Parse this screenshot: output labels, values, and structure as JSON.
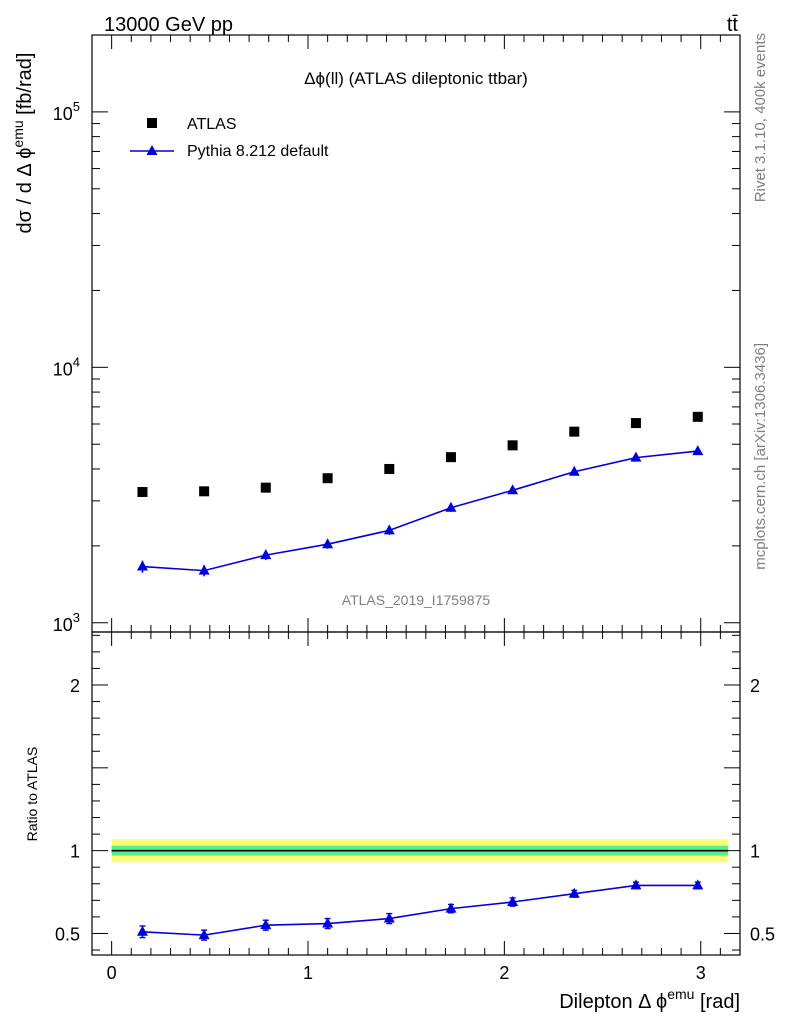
{
  "header": {
    "energy_label": "13000 GeV pp",
    "process_label": "tt̄"
  },
  "side": {
    "rivet_label": "Rivet 3.1.10,  400k events",
    "source_label": "mcplots.cern.ch [arXiv:1306.3436]"
  },
  "colors": {
    "data_marker": "#000000",
    "mc_line": "#0000dd",
    "band_inner": "#55ee88",
    "band_outer": "#ffff77"
  },
  "chart_data": [
    {
      "type": "scatter",
      "title": "Δϕ(ll) (ATLAS dileptonic ttbar)",
      "watermark": "ATLAS_2019_I1759875",
      "xlabel": "Dilepton Δ ϕ",
      "xlabel_sup": "emu",
      "xlabel_unit": " [rad]",
      "ylabel": "dσ / d Δ ϕ",
      "ylabel_sup": "emu",
      "ylabel_unit": " [fb/rad]",
      "yscale": "log",
      "xlim": [
        -0.1,
        3.2
      ],
      "ylim": [
        920,
        200000
      ],
      "xticks": [
        "0",
        "1",
        "2",
        "3"
      ],
      "yticks": [
        {
          "base": "10",
          "exp": "3",
          "value": 1000
        },
        {
          "base": "10",
          "exp": "4",
          "value": 10000
        },
        {
          "base": "10",
          "exp": "5",
          "value": 100000
        }
      ],
      "legend_position": "top-left",
      "x": [
        0.157,
        0.471,
        0.785,
        1.1,
        1.414,
        1.728,
        2.042,
        2.356,
        2.67,
        2.985
      ],
      "series": [
        {
          "name": "ATLAS",
          "marker": "square",
          "values": [
            3250,
            3270,
            3380,
            3680,
            4000,
            4450,
            4950,
            5600,
            6050,
            6400
          ]
        },
        {
          "name": "Pythia 8.212 default",
          "marker": "triangle",
          "values": [
            1660,
            1600,
            1840,
            2030,
            2300,
            2820,
            3300,
            3900,
            4430,
            4700
          ],
          "errors": [
            90,
            80,
            80,
            80,
            90,
            100,
            80,
            80,
            80,
            80
          ]
        }
      ]
    },
    {
      "type": "line",
      "ylabel": "Ratio to ATLAS",
      "xlim": [
        -0.1,
        3.2
      ],
      "ylim": [
        0.37,
        2.32
      ],
      "yticks": [
        "0.5",
        "1",
        "2"
      ],
      "x": [
        0.157,
        0.471,
        0.785,
        1.1,
        1.414,
        1.728,
        2.042,
        2.356,
        2.67,
        2.985
      ],
      "reference": 1.0,
      "band_inner": [
        0.97,
        1.03
      ],
      "band_outer": [
        0.93,
        1.07
      ],
      "series": [
        {
          "name": "Pythia 8.212 default",
          "values": [
            0.51,
            0.49,
            0.55,
            0.56,
            0.59,
            0.65,
            0.69,
            0.74,
            0.79,
            0.79
          ],
          "errors": [
            0.035,
            0.03,
            0.03,
            0.03,
            0.03,
            0.025,
            0.025,
            0.02,
            0.02,
            0.02
          ]
        }
      ]
    }
  ]
}
